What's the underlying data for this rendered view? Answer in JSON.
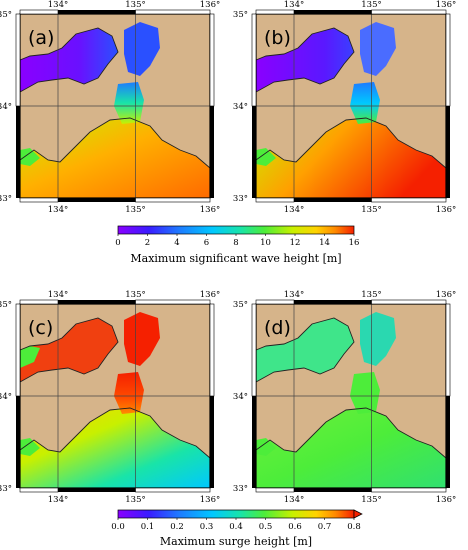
{
  "colors": {
    "land": "#d6b48a",
    "frame": "#000000",
    "scale_stops": [
      "#8a00ff",
      "#3a1cff",
      "#1e7bff",
      "#00c8ff",
      "#19e4a8",
      "#4ded3a",
      "#c8f000",
      "#ffd200",
      "#ff8a00",
      "#f52000"
    ]
  },
  "axes": {
    "lon_labels": [
      "134°",
      "135°",
      "136°"
    ],
    "lat_labels": [
      "33°",
      "34°",
      "35°"
    ]
  },
  "panels": [
    {
      "label": "(a)",
      "field": "Maximum significant wave height",
      "scenario": "a",
      "open_sea_level": "high (orange–red)",
      "inner_sea_level": "low (violet–blue)"
    },
    {
      "label": "(b)",
      "field": "Maximum significant wave height",
      "scenario": "b",
      "open_sea_level": "high (orange–red, strongest in east)",
      "inner_sea_level": "low (violet–blue)"
    },
    {
      "label": "(c)",
      "field": "Maximum surge height",
      "scenario": "c",
      "open_sea_level": "moderate (yellow–cyan)",
      "inner_sea_level": "high (red)"
    },
    {
      "label": "(d)",
      "field": "Maximum surge height",
      "scenario": "d",
      "open_sea_level": "moderate (green)",
      "inner_sea_level": "moderate (green–cyan)"
    }
  ],
  "colorbars": [
    {
      "title": "Maximum significant wave height [m]",
      "tick_labels": [
        "0",
        "2",
        "4",
        "6",
        "8",
        "10",
        "12",
        "14",
        "16"
      ],
      "min": 0,
      "max": 16
    },
    {
      "title": "Maximum surge height [m]",
      "tick_labels": [
        "0.0",
        "0.1",
        "0.2",
        "0.3",
        "0.4",
        "0.5",
        "0.6",
        "0.7",
        "0.8"
      ],
      "min": 0,
      "max": 0.8
    }
  ]
}
